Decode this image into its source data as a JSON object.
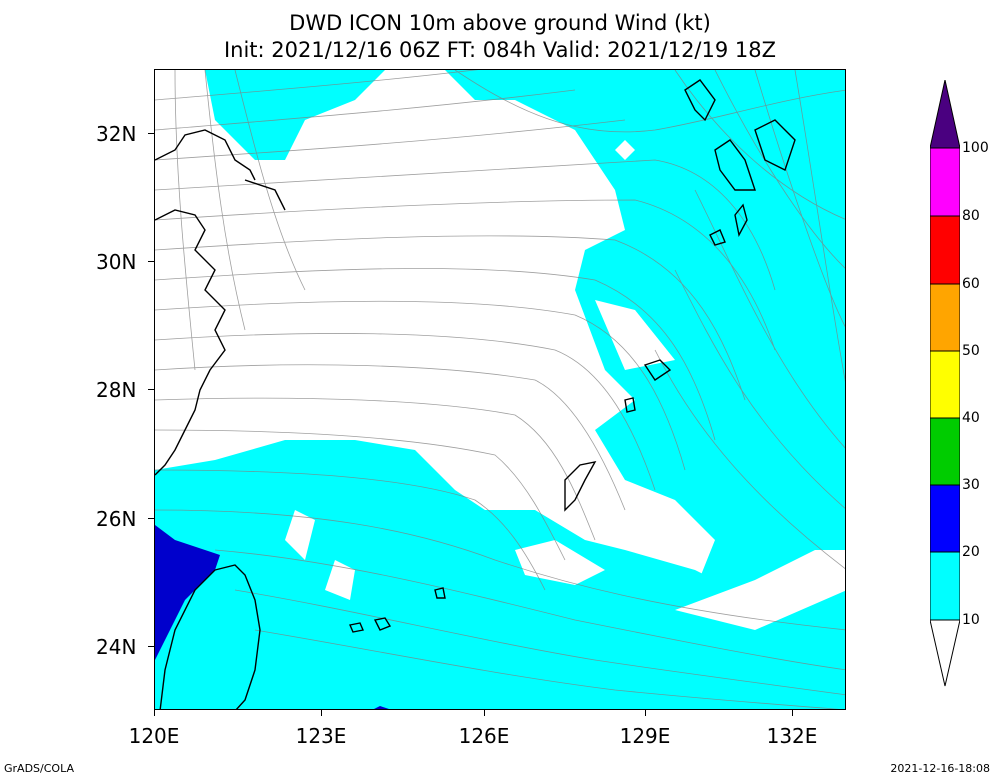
{
  "title": {
    "line1": "DWD ICON 10m above ground Wind (kt)",
    "line2": "Init: 2021/12/16 06Z  FT: 084h  Valid: 2021/12/19 18Z"
  },
  "axes": {
    "lat_labels": [
      "32N",
      "30N",
      "28N",
      "26N",
      "24N"
    ],
    "lon_labels": [
      "120E",
      "123E",
      "126E",
      "129E",
      "132E"
    ]
  },
  "colorbar": {
    "labels": [
      "100",
      "80",
      "60",
      "50",
      "40",
      "30",
      "20",
      "10"
    ],
    "colors": {
      "top": "#4a0080",
      "c80_100": "#ff00ff",
      "c60_80": "#ff0000",
      "c50_60": "#ffa500",
      "c40_50": "#ffff00",
      "c30_40": "#00cc00",
      "c20_30": "#0000ff",
      "c10_20": "#00ffff",
      "below10": "#ffffff"
    }
  },
  "footer": {
    "left": "GrADS/COLA",
    "right": "2021-12-16-18:08"
  },
  "colors": {
    "cyan": "#00ffff",
    "blue": "#0000cc",
    "streamline": "#808080",
    "coast": "#000000"
  }
}
